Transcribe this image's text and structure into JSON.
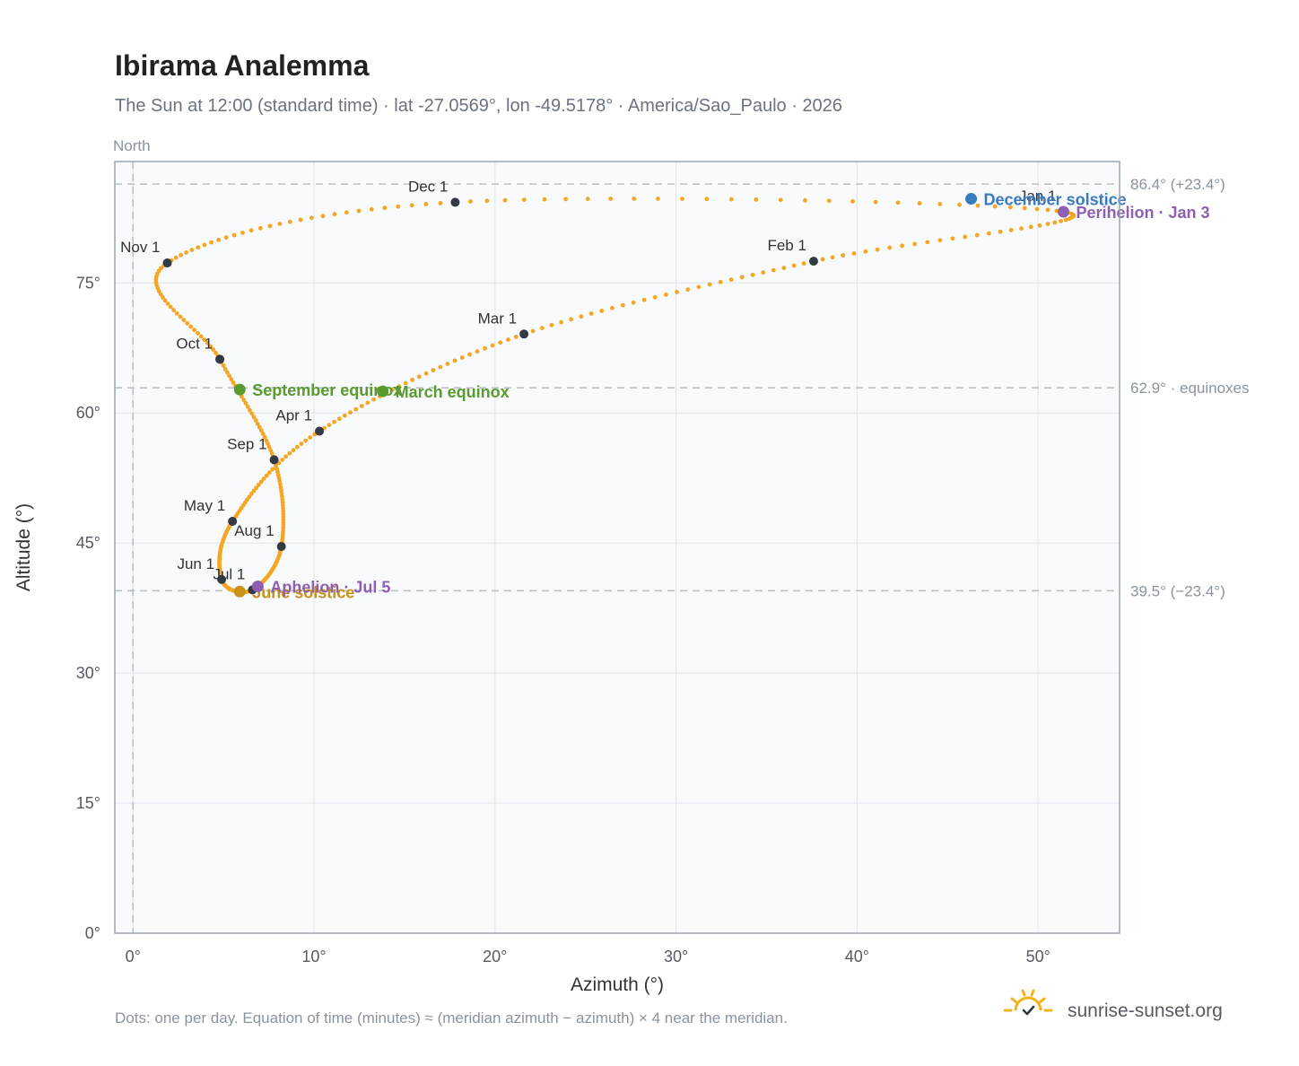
{
  "header": {
    "title": "Ibirama Analemma",
    "subtitle": "The Sun at 12:00 (standard time) · lat -27.0569°, lon -49.5178° · America/Sao_Paulo · 2026"
  },
  "direction_label": "North",
  "footer": {
    "note": "Dots: one per day. Equation of time (minutes) ≈ (meridian azimuth − azimuth) × 4 near the meridian.",
    "brand": "sunrise-sunset.org",
    "brand_icon": "sun-horizon-icon"
  },
  "colors": {
    "path": "#f5a623",
    "month_marker": "#333a44",
    "equinox": "#5a9a2f",
    "december_solstice": "#3a7abf",
    "june_solstice": "#c9901a",
    "apsis": "#8e5fb0",
    "reference_line": "#b8c2cc",
    "plot_background": "#f8fafc"
  },
  "chart_data": {
    "type": "scatter",
    "xlabel": "Azimuth (°)",
    "ylabel": "Altitude (°)",
    "xlim": [
      -1,
      54.5
    ],
    "ylim": [
      0,
      89
    ],
    "x_ticks": [
      0,
      10,
      20,
      30,
      40,
      50
    ],
    "x_tick_labels": [
      "0°",
      "10°",
      "20°",
      "30°",
      "40°",
      "50°"
    ],
    "y_ticks": [
      0,
      15,
      30,
      45,
      60,
      75
    ],
    "y_tick_labels": [
      "0°",
      "15°",
      "30°",
      "45°",
      "60°",
      "75°"
    ],
    "grid": true,
    "reference_lines": [
      {
        "axis": "y",
        "value": 86.4,
        "label": "86.4° (+23.4°)"
      },
      {
        "axis": "y",
        "value": 62.9,
        "label": "62.9° · equinoxes"
      },
      {
        "axis": "y",
        "value": 39.5,
        "label": "39.5° (−23.4°)"
      },
      {
        "axis": "x",
        "value": 0,
        "label": ""
      }
    ],
    "month_markers": [
      {
        "label": "Jan 1",
        "azimuth": 51.4,
        "altitude": 83.2
      },
      {
        "label": "Feb 1",
        "azimuth": 37.6,
        "altitude": 77.5
      },
      {
        "label": "Mar 1",
        "azimuth": 21.6,
        "altitude": 69.1
      },
      {
        "label": "Apr 1",
        "azimuth": 10.3,
        "altitude": 57.9
      },
      {
        "label": "May 1",
        "azimuth": 5.5,
        "altitude": 47.5
      },
      {
        "label": "Jun 1",
        "azimuth": 4.9,
        "altitude": 40.8
      },
      {
        "label": "Jul 1",
        "azimuth": 6.6,
        "altitude": 39.6
      },
      {
        "label": "Aug 1",
        "azimuth": 8.2,
        "altitude": 44.6
      },
      {
        "label": "Sep 1",
        "azimuth": 7.8,
        "altitude": 54.6
      },
      {
        "label": "Oct 1",
        "azimuth": 4.8,
        "altitude": 66.2
      },
      {
        "label": "Nov 1",
        "azimuth": 1.9,
        "altitude": 77.3
      },
      {
        "label": "Dec 1",
        "azimuth": 17.8,
        "altitude": 84.3
      }
    ],
    "events": [
      {
        "label": "March equinox",
        "azimuth": 13.8,
        "altitude": 62.5,
        "kind": "equinox"
      },
      {
        "label": "September equinox",
        "azimuth": 5.9,
        "altitude": 62.7,
        "kind": "equinox"
      },
      {
        "label": "June solstice",
        "azimuth": 5.9,
        "altitude": 39.4,
        "kind": "june_solstice"
      },
      {
        "label": "December solstice",
        "azimuth": 46.3,
        "altitude": 84.7,
        "kind": "december_solstice"
      },
      {
        "label": "Perihelion · Jan 3",
        "azimuth": 51.4,
        "altitude": 83.2,
        "kind": "apsis"
      },
      {
        "label": "Aphelion · Jul 5",
        "azimuth": 6.9,
        "altitude": 40.0,
        "kind": "apsis"
      }
    ]
  }
}
